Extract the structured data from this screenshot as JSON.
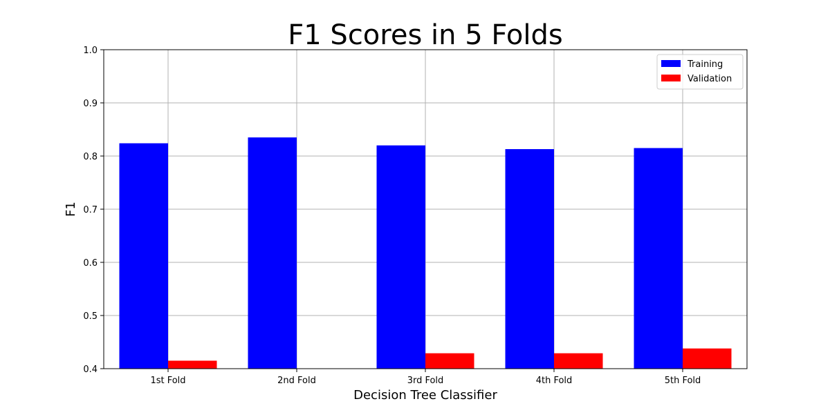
{
  "chart_data": {
    "type": "bar",
    "title": "F1 Scores in 5 Folds",
    "xlabel": "Decision Tree Classifier",
    "ylabel": "F1",
    "categories": [
      "1st Fold",
      "2nd Fold",
      "3rd Fold",
      "4th Fold",
      "5th Fold"
    ],
    "series": [
      {
        "name": "Training",
        "color": "#0000ff",
        "values": [
          0.824,
          0.835,
          0.82,
          0.813,
          0.815
        ]
      },
      {
        "name": "Validation",
        "color": "#ff0000",
        "values": [
          0.415,
          0.4,
          0.429,
          0.429,
          0.438
        ]
      }
    ],
    "ylim": [
      0.4,
      1.0
    ],
    "yticks": [
      "0.4",
      "0.5",
      "0.6",
      "0.7",
      "0.8",
      "0.9",
      "1.0"
    ],
    "grid": true,
    "legend_position": "top-right"
  }
}
